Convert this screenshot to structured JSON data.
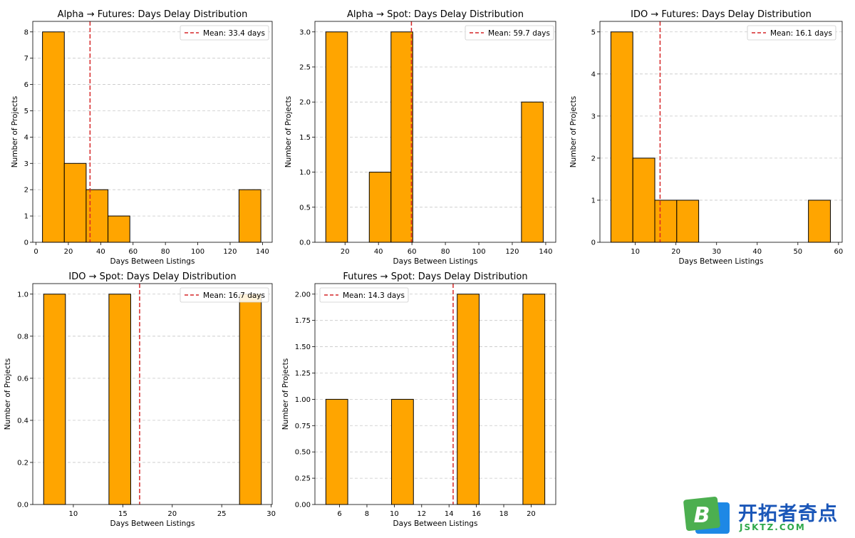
{
  "chart_data": [
    {
      "type": "bar",
      "title": "Alpha → Futures: Days Delay Distribution",
      "xlabel": "Days Between Listings",
      "ylabel": "Number of Projects",
      "xlim": [
        -2,
        146
      ],
      "ylim": [
        0,
        8.4
      ],
      "xticks": [
        0,
        20,
        40,
        60,
        80,
        100,
        120,
        140
      ],
      "xtick_labels": [
        "0",
        "20",
        "40",
        "60",
        "80",
        "100",
        "120",
        "140"
      ],
      "yticks": [
        0,
        1,
        2,
        3,
        4,
        5,
        6,
        7,
        8
      ],
      "ytick_labels": [
        "0",
        "1",
        "2",
        "3",
        "4",
        "5",
        "6",
        "7",
        "8"
      ],
      "bins": [
        {
          "x0": 4,
          "x1": 17.5,
          "count": 8
        },
        {
          "x0": 17.5,
          "x1": 31,
          "count": 3
        },
        {
          "x0": 31,
          "x1": 44.5,
          "count": 2
        },
        {
          "x0": 44.5,
          "x1": 58,
          "count": 1
        },
        {
          "x0": 125.5,
          "x1": 139,
          "count": 2
        }
      ],
      "mean": 33.4,
      "legend_label": "Mean: 33.4 days",
      "legend_position": "upper right",
      "grid": "y"
    },
    {
      "type": "bar",
      "title": "Alpha → Spot: Days Delay Distribution",
      "xlabel": "Days Between Listings",
      "ylabel": "Number of Projects",
      "xlim": [
        2,
        146
      ],
      "ylim": [
        0,
        3.15
      ],
      "xticks": [
        20,
        40,
        60,
        80,
        100,
        120,
        140
      ],
      "xtick_labels": [
        "20",
        "40",
        "60",
        "80",
        "100",
        "120",
        "140"
      ],
      "yticks": [
        0,
        0.5,
        1,
        1.5,
        2,
        2.5,
        3
      ],
      "ytick_labels": [
        "0.0",
        "0.5",
        "1.0",
        "1.5",
        "2.0",
        "2.5",
        "3.0"
      ],
      "bins": [
        {
          "x0": 8.5,
          "x1": 21.5,
          "count": 3
        },
        {
          "x0": 34.5,
          "x1": 47.5,
          "count": 1
        },
        {
          "x0": 47.5,
          "x1": 60.5,
          "count": 3
        },
        {
          "x0": 125.5,
          "x1": 138.5,
          "count": 2
        }
      ],
      "mean": 59.7,
      "legend_label": "Mean: 59.7 days",
      "legend_position": "upper right",
      "grid": "y"
    },
    {
      "type": "bar",
      "title": "IDO → Futures: Days Delay Distribution",
      "xlabel": "Days Between Listings",
      "ylabel": "Number of Projects",
      "xlim": [
        1.3,
        60.9
      ],
      "ylim": [
        0,
        5.25
      ],
      "xticks": [
        10,
        20,
        30,
        40,
        50,
        60
      ],
      "xtick_labels": [
        "10",
        "20",
        "30",
        "40",
        "50",
        "60"
      ],
      "yticks": [
        0,
        1,
        2,
        3,
        4,
        5
      ],
      "ytick_labels": [
        "0",
        "1",
        "2",
        "3",
        "4",
        "5"
      ],
      "bins": [
        {
          "x0": 4,
          "x1": 9.4,
          "count": 5
        },
        {
          "x0": 9.4,
          "x1": 14.8,
          "count": 2
        },
        {
          "x0": 14.8,
          "x1": 20.2,
          "count": 1
        },
        {
          "x0": 20.2,
          "x1": 25.6,
          "count": 1
        },
        {
          "x0": 52.6,
          "x1": 58,
          "count": 1
        }
      ],
      "mean": 16.1,
      "legend_label": "Mean: 16.1 days",
      "legend_position": "upper right",
      "grid": "y"
    },
    {
      "type": "bar",
      "title": "IDO → Spot: Days Delay Distribution",
      "xlabel": "Days Between Listings",
      "ylabel": "Number of Projects",
      "xlim": [
        5.9,
        30.1
      ],
      "ylim": [
        0,
        1.05
      ],
      "xticks": [
        10,
        15,
        20,
        25,
        30
      ],
      "xtick_labels": [
        "10",
        "15",
        "20",
        "25",
        "30"
      ],
      "yticks": [
        0,
        0.2,
        0.4,
        0.6,
        0.8,
        1.0
      ],
      "ytick_labels": [
        "0.0",
        "0.2",
        "0.4",
        "0.6",
        "0.8",
        "1.0"
      ],
      "bins": [
        {
          "x0": 7,
          "x1": 9.2,
          "count": 1
        },
        {
          "x0": 13.6,
          "x1": 15.8,
          "count": 1
        },
        {
          "x0": 26.8,
          "x1": 29,
          "count": 1
        }
      ],
      "mean": 16.7,
      "legend_label": "Mean: 16.7 days",
      "legend_position": "upper right",
      "grid": "y"
    },
    {
      "type": "bar",
      "title": "Futures → Spot: Days Delay Distribution",
      "xlabel": "Days Between Listings",
      "ylabel": "Number of Projects",
      "xlim": [
        4.2,
        21.8
      ],
      "ylim": [
        0,
        2.1
      ],
      "xticks": [
        6,
        8,
        10,
        12,
        14,
        16,
        18,
        20
      ],
      "xtick_labels": [
        "6",
        "8",
        "10",
        "12",
        "14",
        "16",
        "18",
        "20"
      ],
      "yticks": [
        0,
        0.25,
        0.5,
        0.75,
        1.0,
        1.25,
        1.5,
        1.75,
        2.0
      ],
      "ytick_labels": [
        "0.00",
        "0.25",
        "0.50",
        "0.75",
        "1.00",
        "1.25",
        "1.50",
        "1.75",
        "2.00"
      ],
      "bins": [
        {
          "x0": 5,
          "x1": 6.6,
          "count": 1
        },
        {
          "x0": 9.8,
          "x1": 11.4,
          "count": 1
        },
        {
          "x0": 14.6,
          "x1": 16.2,
          "count": 2
        },
        {
          "x0": 19.4,
          "x1": 21,
          "count": 2
        }
      ],
      "mean": 14.3,
      "legend_label": "Mean: 14.3 days",
      "legend_position": "upper left",
      "grid": "y"
    }
  ],
  "colors": {
    "bar_fill": "#FFA500",
    "bar_edge": "#000000",
    "mean_line": "#d62728",
    "grid": "#b0b0b0",
    "axes": "#000000"
  },
  "watermark": {
    "logo_letter": "B",
    "text": "开拓者奇点",
    "subtext": "JSKTZ.COM"
  }
}
